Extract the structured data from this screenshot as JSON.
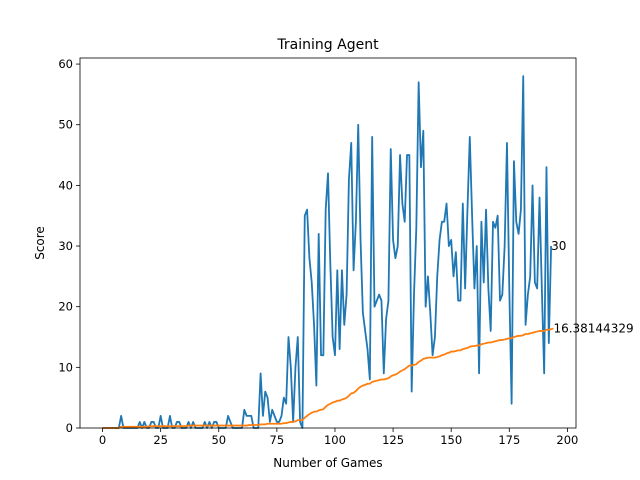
{
  "chart_data": {
    "type": "line",
    "title": "Training Agent",
    "xlabel": "Number of Games",
    "ylabel": "Score",
    "xlim": [
      -9.7,
      203.7
    ],
    "ylim": [
      0,
      61
    ],
    "xticks": [
      0,
      25,
      50,
      75,
      100,
      125,
      150,
      175,
      200
    ],
    "yticks": [
      0,
      10,
      20,
      30,
      40,
      50,
      60
    ],
    "grid": false,
    "series": [
      {
        "name": "",
        "color": "#1f77b4",
        "x_start": 0,
        "values": [
          0,
          0,
          0,
          0,
          0,
          0,
          0,
          0,
          2,
          0,
          0,
          0,
          0,
          0,
          0,
          0,
          1,
          0,
          1,
          0,
          0,
          1,
          1,
          0,
          0,
          2,
          0,
          0,
          0,
          2,
          0,
          0,
          1,
          1,
          0,
          0,
          0,
          1,
          0,
          1,
          0,
          0,
          0,
          0,
          1,
          0,
          1,
          0,
          1,
          1,
          0,
          0,
          0,
          0,
          2,
          1,
          0,
          0,
          0,
          0,
          0,
          3,
          2,
          2,
          2,
          0,
          0,
          0,
          9,
          2,
          6,
          5,
          1,
          3,
          2,
          1,
          1,
          2,
          5,
          4,
          15,
          10,
          1,
          10,
          15,
          1,
          0,
          35,
          36,
          28,
          24,
          17,
          7,
          32,
          12,
          12,
          36,
          42,
          27,
          15,
          12,
          26,
          13,
          26,
          17,
          22,
          41,
          47,
          26,
          34,
          50,
          31,
          19,
          16,
          13,
          8,
          48,
          20,
          21,
          22,
          21,
          9,
          18,
          21,
          46,
          31,
          28,
          30,
          45,
          37,
          34,
          45,
          45,
          6,
          22,
          33,
          57,
          43,
          49,
          20,
          25,
          19,
          12,
          15,
          25,
          31,
          34,
          34,
          37,
          30,
          31,
          25,
          29,
          21,
          21,
          37,
          23,
          36,
          48,
          35,
          23,
          30,
          9,
          34,
          24,
          36,
          23,
          16,
          34,
          33,
          35,
          21,
          22,
          30,
          47,
          23,
          4,
          44,
          34,
          32,
          36,
          58,
          17,
          22,
          25,
          40,
          24,
          23,
          38,
          23,
          9,
          43,
          14,
          30
        ],
        "end_label": "30"
      },
      {
        "name": "",
        "color": "#ff7f0e",
        "x_start": 0,
        "values": [
          0,
          0,
          0,
          0,
          0,
          0,
          0,
          0,
          0.2,
          0.2,
          0.2,
          0.2,
          0.2,
          0.2,
          0.2,
          0.2,
          0.2,
          0.2,
          0.2,
          0.2,
          0.3,
          0.3,
          0.3,
          0.3,
          0.3,
          0.3,
          0.3,
          0.3,
          0.3,
          0.3,
          0.3,
          0.3,
          0.3,
          0.3,
          0.3,
          0.3,
          0.3,
          0.4,
          0.4,
          0.4,
          0.4,
          0.4,
          0.4,
          0.4,
          0.4,
          0.4,
          0.4,
          0.4,
          0.4,
          0.4,
          0.4,
          0.4,
          0.4,
          0.4,
          0.4,
          0.4,
          0.4,
          0.4,
          0.4,
          0.4,
          0.4,
          0.4,
          0.4,
          0.5,
          0.5,
          0.5,
          0.5,
          0.5,
          0.6,
          0.6,
          0.6,
          0.7,
          0.7,
          0.7,
          0.7,
          0.7,
          0.7,
          0.7,
          0.8,
          0.8,
          0.9,
          1.0,
          1.0,
          1.1,
          1.3,
          1.3,
          1.3,
          1.7,
          2.0,
          2.3,
          2.5,
          2.7,
          2.7,
          2.9,
          3.0,
          3.1,
          3.5,
          3.8,
          4.0,
          4.2,
          4.3,
          4.5,
          4.5,
          4.7,
          4.8,
          5.0,
          5.3,
          5.7,
          5.8,
          6.1,
          6.5,
          6.8,
          7.0,
          7.1,
          7.3,
          7.3,
          7.6,
          7.7,
          7.8,
          7.9,
          8.0,
          8.0,
          8.1,
          8.2,
          8.5,
          8.7,
          8.8,
          9.0,
          9.3,
          9.5,
          9.7,
          10.0,
          10.3,
          10.3,
          10.4,
          10.5,
          10.9,
          11.1,
          11.4,
          11.5,
          11.6,
          11.6,
          11.6,
          11.6,
          11.7,
          11.8,
          12.0,
          12.1,
          12.3,
          12.4,
          12.6,
          12.6,
          12.7,
          12.8,
          12.8,
          13.0,
          13.1,
          13.2,
          13.4,
          13.5,
          13.5,
          13.6,
          13.6,
          13.8,
          13.9,
          14.0,
          14.1,
          14.1,
          14.2,
          14.3,
          14.4,
          14.5,
          14.5,
          14.6,
          14.7,
          14.8,
          14.8,
          15.0,
          15.1,
          15.2,
          15.2,
          15.3,
          15.5,
          15.5,
          15.6,
          15.7,
          15.8,
          15.9,
          16.0,
          16.0,
          16.0,
          16.2,
          16.2,
          16.3,
          16.38144329
        ],
        "end_label": "16.38144329"
      }
    ]
  }
}
